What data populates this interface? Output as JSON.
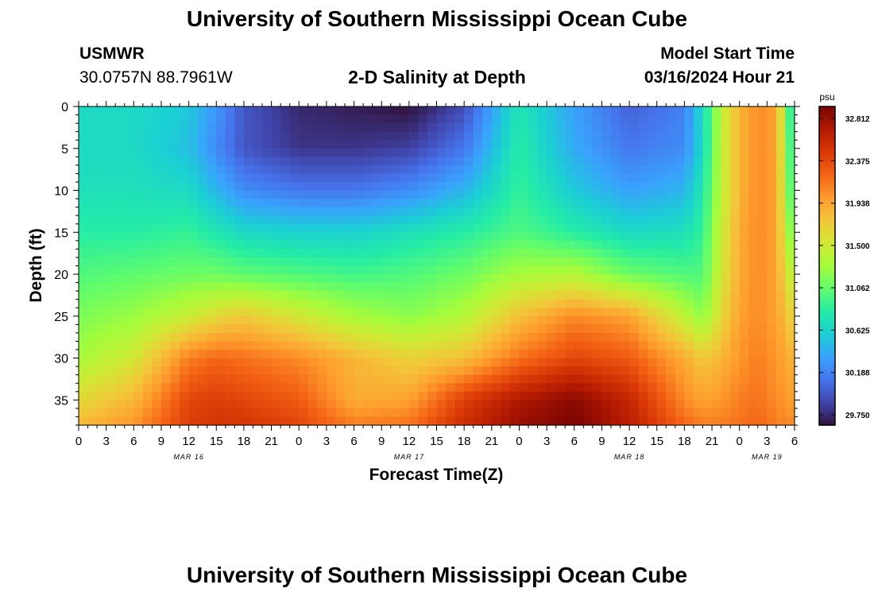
{
  "header": {
    "title": "University of Southern Mississippi Ocean Cube",
    "station": "USMWR",
    "coords": "30.0757N  88.7961W",
    "subtitle": "2-D Salinity at Depth",
    "model_label": "Model Start Time",
    "model_time": "03/16/2024 Hour 21"
  },
  "footer": {
    "title": "University of Southern Mississippi Ocean Cube"
  },
  "chart_data": {
    "type": "heatmap",
    "xlabel": "Forecast Time(Z)",
    "ylabel": "Depth (ft)",
    "x_range_hours": [
      0,
      78
    ],
    "y_range_ft": [
      0,
      38
    ],
    "x_tick_labels": [
      "0",
      "3",
      "6",
      "9",
      "12",
      "15",
      "18",
      "21",
      "0",
      "3",
      "6",
      "9",
      "12",
      "15",
      "18",
      "21",
      "0",
      "3",
      "6",
      "9",
      "12",
      "15",
      "18",
      "21",
      "0",
      "3",
      "6"
    ],
    "y_tick_labels": [
      "0",
      "5",
      "10",
      "15",
      "20",
      "25",
      "30",
      "35"
    ],
    "date_labels": [
      {
        "label": "MAR 16",
        "hour": 12
      },
      {
        "label": "MAR 17",
        "hour": 36
      },
      {
        "label": "MAR 18",
        "hour": 60
      },
      {
        "label": "MAR 19",
        "hour": 75
      }
    ],
    "colorbar": {
      "unit": "psu",
      "min": 29.75,
      "max": 32.812,
      "tick_labels": [
        "32.812",
        "32.375",
        "31.938",
        "31.500",
        "31.062",
        "30.625",
        "30.188",
        "29.750"
      ],
      "colors": [
        "#30123b",
        "#4145ab",
        "#4675ed",
        "#39a2fc",
        "#1bcfd4",
        "#24eca6",
        "#61fc6c",
        "#a4fc3b",
        "#d1e834",
        "#f3c63a",
        "#fe9b2d",
        "#f36315",
        "#d93806",
        "#b11901",
        "#7a0402"
      ]
    },
    "depth_rows_ft": [
      0,
      5,
      10,
      15,
      20,
      25,
      30,
      35,
      38
    ],
    "time_columns_h": [
      0,
      6,
      12,
      15,
      18,
      24,
      30,
      36,
      42,
      48,
      54,
      60,
      66,
      68,
      70,
      72,
      74,
      76,
      78
    ],
    "salinity_psu": [
      [
        30.7,
        30.7,
        30.6,
        30.35,
        30.05,
        29.85,
        29.8,
        29.75,
        30.0,
        30.8,
        30.4,
        30.1,
        30.25,
        30.7,
        31.4,
        31.8,
        32.0,
        31.9,
        30.6
      ],
      [
        30.7,
        30.7,
        30.55,
        30.3,
        30.05,
        29.9,
        29.9,
        29.95,
        30.2,
        30.85,
        30.45,
        30.2,
        30.3,
        30.7,
        31.4,
        31.8,
        32.0,
        31.9,
        30.7
      ],
      [
        30.75,
        30.75,
        30.7,
        30.5,
        30.3,
        30.2,
        30.2,
        30.3,
        30.5,
        30.9,
        30.6,
        30.4,
        30.5,
        30.8,
        31.4,
        31.8,
        32.0,
        31.9,
        30.8
      ],
      [
        30.85,
        30.85,
        30.9,
        30.8,
        30.7,
        30.65,
        30.65,
        30.75,
        30.85,
        31.0,
        30.85,
        30.7,
        30.75,
        30.9,
        31.45,
        31.85,
        32.0,
        31.9,
        31.0
      ],
      [
        31.0,
        31.05,
        31.1,
        31.1,
        31.05,
        31.0,
        30.95,
        31.0,
        31.1,
        31.3,
        31.35,
        31.1,
        31.0,
        31.0,
        31.5,
        31.85,
        32.0,
        31.9,
        31.3
      ],
      [
        31.15,
        31.25,
        31.45,
        31.6,
        31.7,
        31.5,
        31.3,
        31.2,
        31.35,
        31.75,
        32.0,
        31.9,
        31.4,
        31.2,
        31.6,
        31.9,
        32.0,
        31.9,
        31.6
      ],
      [
        31.3,
        31.5,
        32.05,
        32.15,
        32.1,
        32.0,
        31.8,
        31.65,
        31.75,
        32.1,
        32.3,
        32.2,
        31.85,
        31.7,
        31.8,
        31.95,
        32.05,
        31.95,
        31.8
      ],
      [
        31.6,
        31.8,
        32.3,
        32.35,
        32.3,
        32.2,
        31.85,
        31.9,
        32.35,
        32.6,
        32.75,
        32.5,
        32.0,
        31.9,
        31.95,
        32.05,
        32.1,
        32.0,
        31.9
      ],
      [
        31.8,
        31.95,
        32.35,
        32.4,
        32.4,
        32.3,
        32.05,
        32.1,
        32.45,
        32.7,
        32.81,
        32.55,
        32.15,
        32.05,
        32.05,
        32.1,
        32.15,
        32.05,
        32.0
      ]
    ]
  }
}
